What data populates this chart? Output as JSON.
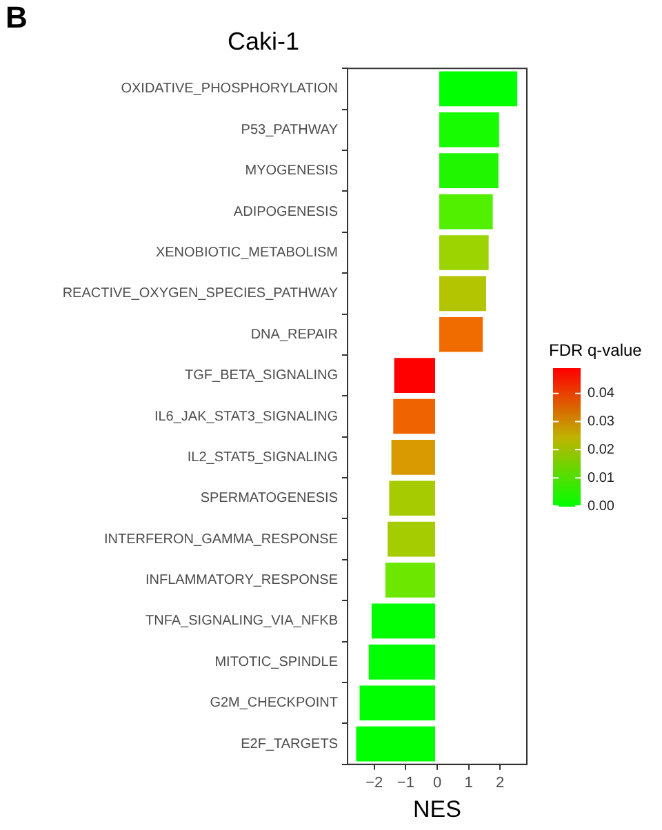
{
  "chart_data": {
    "type": "bar",
    "orientation": "horizontal",
    "title": "Caki-1",
    "xlabel": "NES",
    "categories": [
      "OXIDATIVE_PHOSPHORYLATION",
      "P53_PATHWAY",
      "MYOGENESIS",
      "ADIPOGENESIS",
      "XENOBIOTIC_METABOLISM",
      "REACTIVE_OXYGEN_SPECIES_PATHWAY",
      "DNA_REPAIR",
      "TGF_BETA_SIGNALING",
      "IL6_JAK_STAT3_SIGNALING",
      "IL2_STAT5_SIGNALING",
      "SPERMATOGENESIS",
      "INTERFERON_GAMMA_RESPONSE",
      "INFLAMMATORY_RESPONSE",
      "TNFA_SIGNALING_VIA_NFKB",
      "MITOTIC_SPINDLE",
      "G2M_CHECKPOINT",
      "E2F_TARGETS"
    ],
    "values": [
      2.59,
      2.01,
      1.99,
      1.81,
      1.68,
      1.6,
      1.49,
      -1.41,
      -1.44,
      -1.5,
      -1.57,
      -1.62,
      -1.69,
      -2.13,
      -2.22,
      -2.51,
      -2.62
    ],
    "colors": [
      "#00ff00",
      "#18fc00",
      "#20f600",
      "#50f000",
      "#9bd400",
      "#b3c400",
      "#f06c00",
      "#ff0000",
      "#f06400",
      "#d89a00",
      "#a6cc00",
      "#a4cc00",
      "#6ce800",
      "#00ff00",
      "#00ff00",
      "#00ff00",
      "#00ff00"
    ],
    "xlim": [
      -2.85,
      2.85
    ],
    "xticks": [
      -2,
      -1,
      0,
      1,
      2
    ],
    "clabel": "FDR q-value",
    "clim": [
      0,
      0.049
    ],
    "cticks": [
      {
        "value": 0,
        "label": "0.00"
      },
      {
        "value": 0.01,
        "label": "0.01"
      },
      {
        "value": 0.02,
        "label": "0.02"
      },
      {
        "value": 0.03,
        "label": "0.03"
      },
      {
        "value": 0.04,
        "label": "0.04"
      }
    ],
    "annotations": [
      "B"
    ],
    "grid": false,
    "legend": false
  }
}
